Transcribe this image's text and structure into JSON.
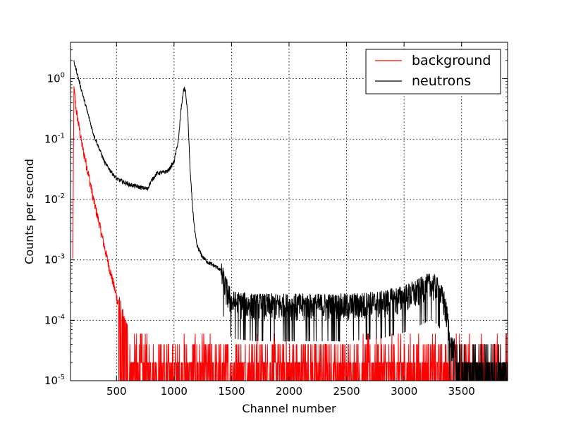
{
  "chart_data": {
    "type": "line",
    "title": "",
    "xlabel": "Channel number",
    "ylabel": "Counts per second",
    "xlim": [
      100,
      3900
    ],
    "ylim": [
      1e-05,
      4
    ],
    "yscale": "log",
    "grid": true,
    "legend_position": "top-right",
    "x_ticks": [
      500,
      1000,
      1500,
      2000,
      2500,
      3000,
      3500
    ],
    "y_ticks": [
      {
        "value": 1e-05,
        "base": "10",
        "exp": "-5"
      },
      {
        "value": 0.0001,
        "base": "10",
        "exp": "-4"
      },
      {
        "value": 0.001,
        "base": "10",
        "exp": "-3"
      },
      {
        "value": 0.01,
        "base": "10",
        "exp": "-2"
      },
      {
        "value": 0.1,
        "base": "10",
        "exp": "-1"
      },
      {
        "value": 1,
        "base": "10",
        "exp": "0"
      }
    ],
    "series": [
      {
        "name": "background",
        "color": "#ff0000",
        "noise": "high",
        "x": [
          120,
          130,
          150,
          200,
          250,
          300,
          350,
          400,
          450,
          500,
          550,
          600,
          650,
          700,
          800,
          900,
          1000,
          1100,
          1200,
          1300,
          1500,
          2000,
          2500,
          3000,
          3500,
          3900
        ],
        "y": [
          0.001,
          0.7,
          0.3,
          0.08,
          0.03,
          0.01,
          0.004,
          0.0015,
          0.0006,
          0.00025,
          0.00012,
          6e-05,
          4e-05,
          3.5e-05,
          3e-05,
          3e-05,
          3e-05,
          3.2e-05,
          4e-05,
          3e-05,
          2.5e-05,
          2.5e-05,
          2.5e-05,
          2.5e-05,
          2.2e-05,
          2e-05
        ]
      },
      {
        "name": "neutrons",
        "color": "#000000",
        "noise": "medium",
        "x": [
          130,
          150,
          200,
          300,
          400,
          500,
          600,
          700,
          770,
          800,
          850,
          900,
          950,
          1000,
          1040,
          1060,
          1080,
          1090,
          1100,
          1120,
          1140,
          1160,
          1180,
          1200,
          1250,
          1300,
          1350,
          1400,
          1450,
          1500,
          1700,
          2000,
          2500,
          2800,
          3000,
          3100,
          3200,
          3250,
          3300,
          3350,
          3380,
          3400,
          3500,
          3700,
          3900
        ],
        "y": [
          1.9,
          1.4,
          0.6,
          0.12,
          0.04,
          0.022,
          0.018,
          0.016,
          0.015,
          0.02,
          0.027,
          0.028,
          0.03,
          0.042,
          0.1,
          0.3,
          0.6,
          0.7,
          0.6,
          0.25,
          0.03,
          0.008,
          0.003,
          0.0017,
          0.0011,
          0.0009,
          0.0008,
          0.0007,
          0.00035,
          0.0002,
          0.00018,
          0.00018,
          0.00018,
          0.0002,
          0.00025,
          0.0003,
          0.00038,
          0.0004,
          0.00032,
          0.0002,
          0.0001,
          4e-05,
          2.2e-05,
          2e-05,
          2e-05
        ]
      }
    ]
  }
}
